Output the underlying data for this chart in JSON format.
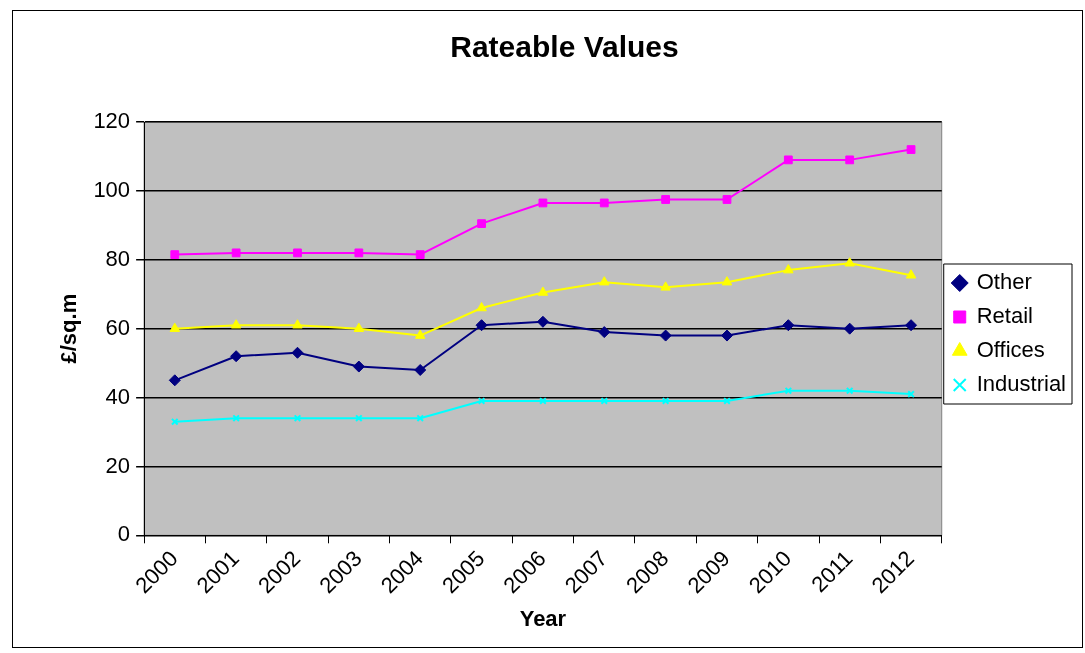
{
  "chart_data": {
    "type": "line",
    "title": "Rateable Values",
    "xlabel": "Year",
    "ylabel": "£/sq.m",
    "categories": [
      "2000",
      "2001",
      "2002",
      "2003",
      "2004",
      "2005",
      "2006",
      "2007",
      "2008",
      "2009",
      "2010",
      "2011",
      "2012"
    ],
    "series": [
      {
        "name": "Other",
        "color": "#000080",
        "marker": "diamond",
        "values": [
          45,
          52,
          53,
          49,
          48,
          61,
          62,
          59,
          58,
          58,
          61,
          60,
          61
        ]
      },
      {
        "name": "Retail",
        "color": "#ff00ff",
        "marker": "square",
        "values": [
          81.5,
          82,
          82,
          82,
          81.5,
          90.5,
          96.5,
          96.5,
          97.5,
          97.5,
          109,
          109,
          112
        ]
      },
      {
        "name": "Offices",
        "color": "#ffff00",
        "marker": "triangle",
        "values": [
          60,
          61,
          61,
          60,
          58,
          66,
          70.5,
          73.5,
          72,
          73.5,
          77,
          79,
          75.5
        ]
      },
      {
        "name": "Industrial",
        "color": "#00ffff",
        "marker": "cross",
        "values": [
          33,
          34,
          34,
          34,
          34,
          39,
          39,
          39,
          39,
          39,
          42,
          42,
          41
        ]
      }
    ],
    "ylim": [
      0,
      120
    ],
    "yticks": [
      0,
      20,
      40,
      60,
      80,
      100,
      120
    ],
    "grid": "y",
    "legend": "right",
    "line_style": "solid"
  }
}
